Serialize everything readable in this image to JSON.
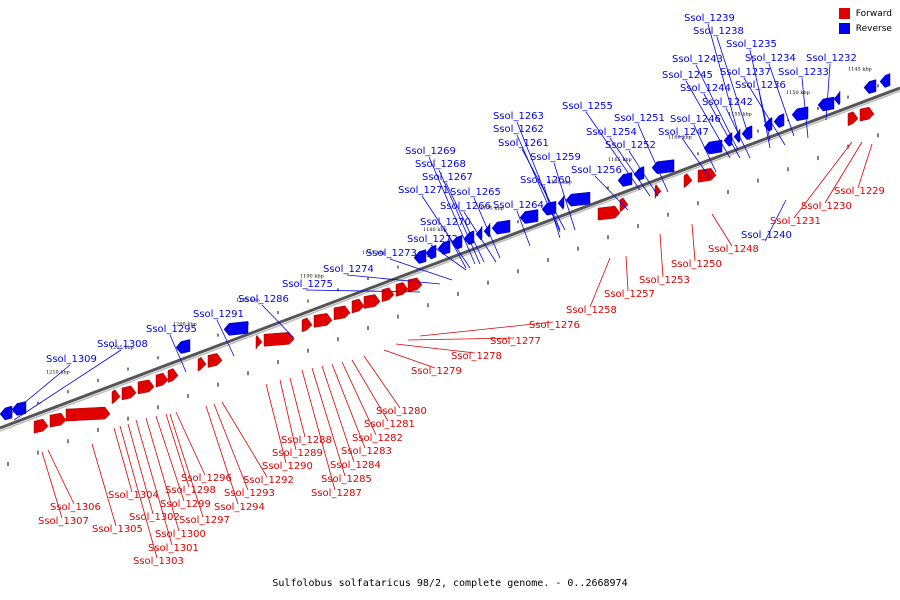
{
  "legend": {
    "forward": {
      "label": "Forward",
      "color": "#e00000"
    },
    "reverse": {
      "label": "Reverse",
      "color": "#0000ee"
    }
  },
  "caption": "Sulfolobus solfataricus 98/2, complete genome. - 0..2668974",
  "kbp_ticks": [
    "1145 kbp",
    "1150 kbp",
    "1155 kbp",
    "1160 kbp",
    "1165 kbp",
    "1170 kbp",
    "1175 kbp",
    "1180 kbp",
    "1185 kbp",
    "1190 kbp",
    "1195 kbp",
    "1200 kbp",
    "1205 kbp",
    "1210 kbp"
  ],
  "reverse_genes": [
    "Ssol_1239",
    "Ssol_1238",
    "Ssol_1235",
    "Ssol_1232",
    "Ssol_1243",
    "Ssol_1234",
    "Ssol_1237",
    "Ssol_1233",
    "Ssol_1245",
    "Ssol_1236",
    "Ssol_1244",
    "Ssol_1242",
    "Ssol_1255",
    "Ssol_1263",
    "Ssol_1251",
    "Ssol_1246",
    "Ssol_1254",
    "Ssol_1247",
    "Ssol_1262",
    "Ssol_1252",
    "Ssol_1261",
    "Ssol_1269",
    "Ssol_1259",
    "Ssol_1268",
    "Ssol_1256",
    "Ssol_1267",
    "Ssol_1260",
    "Ssol_1271",
    "Ssol_1265",
    "Ssol_1266",
    "Ssol_1264",
    "Ssol_1270",
    "Ssol_1272",
    "Ssol_1273",
    "Ssol_1274",
    "Ssol_1275",
    "Ssol_1286",
    "Ssol_1291",
    "Ssol_1295",
    "Ssol_1308",
    "Ssol_1309",
    "Ssol_1240"
  ],
  "forward_genes": [
    "Ssol_1229",
    "Ssol_1230",
    "Ssol_1231",
    "Ssol_1248",
    "Ssol_1250",
    "Ssol_1253",
    "Ssol_1257",
    "Ssol_1258",
    "Ssol_1276",
    "Ssol_1277",
    "Ssol_1278",
    "Ssol_1279",
    "Ssol_1280",
    "Ssol_1281",
    "Ssol_1282",
    "Ssol_1283",
    "Ssol_1284",
    "Ssol_1285",
    "Ssol_1287",
    "Ssol_1288",
    "Ssol_1289",
    "Ssol_1290",
    "Ssol_1292",
    "Ssol_1293",
    "Ssol_1294",
    "Ssol_1296",
    "Ssol_1297",
    "Ssol_1298",
    "Ssol_1299",
    "Ssol_1300",
    "Ssol_1301",
    "Ssol_1302",
    "Ssol_1303",
    "Ssol_1304",
    "Ssol_1305",
    "Ssol_1306",
    "Ssol_1307"
  ]
}
